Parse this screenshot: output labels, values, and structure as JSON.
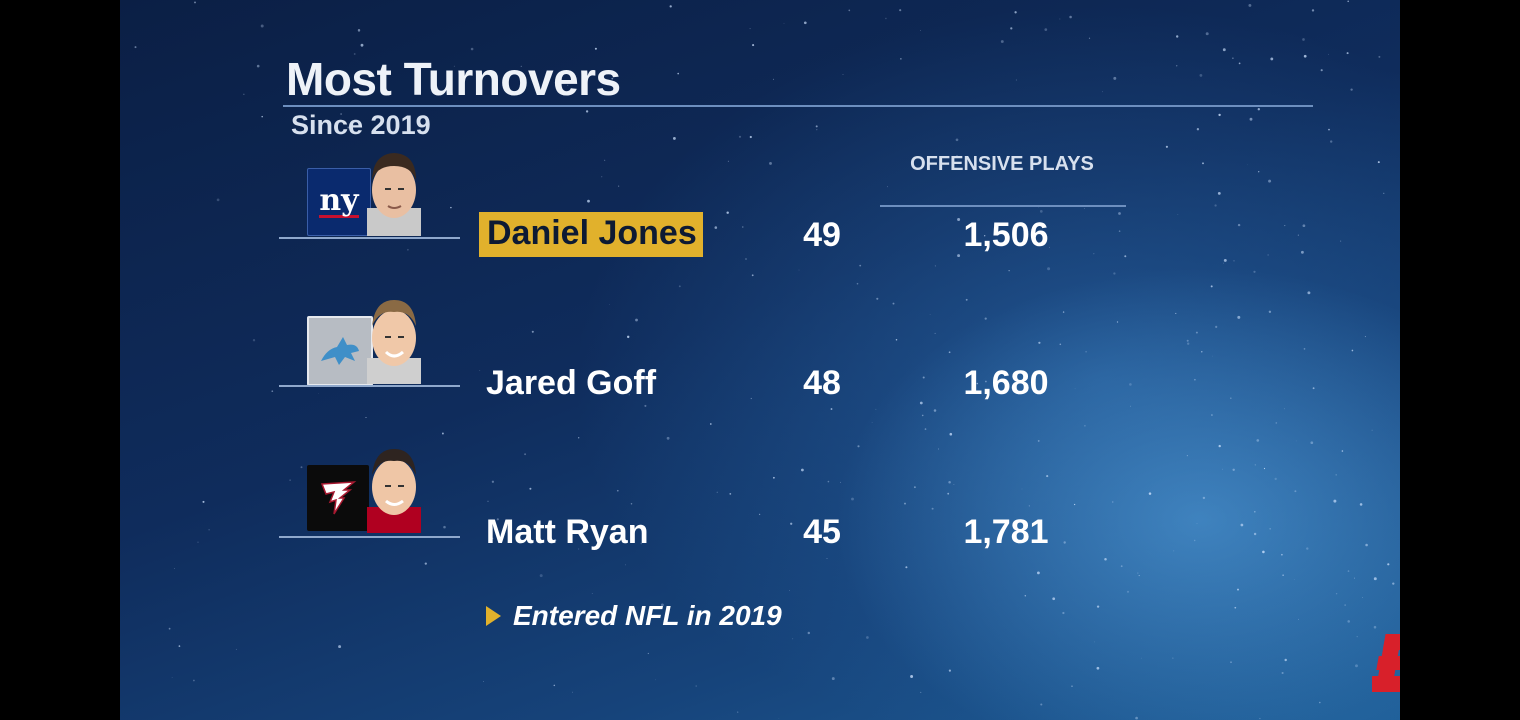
{
  "header": {
    "title": "Most Turnovers",
    "subtitle": "Since 2019"
  },
  "columns": {
    "plays_header": "OFFENSIVE PLAYS"
  },
  "players": [
    {
      "team": "Giants",
      "team_logo_text": "ny",
      "name": "Daniel Jones",
      "turnovers": "49",
      "offensive_plays": "1,506",
      "highlighted": true
    },
    {
      "team": "Lions",
      "name": "Jared Goff",
      "turnovers": "48",
      "offensive_plays": "1,680",
      "highlighted": false
    },
    {
      "team": "Falcons",
      "name": "Matt Ryan",
      "turnovers": "45",
      "offensive_plays": "1,781",
      "highlighted": false
    }
  ],
  "footnote": {
    "text": "Entered NFL in 2019"
  },
  "colors": {
    "highlight": "#e1b12c",
    "espn_red": "#d8202a"
  }
}
